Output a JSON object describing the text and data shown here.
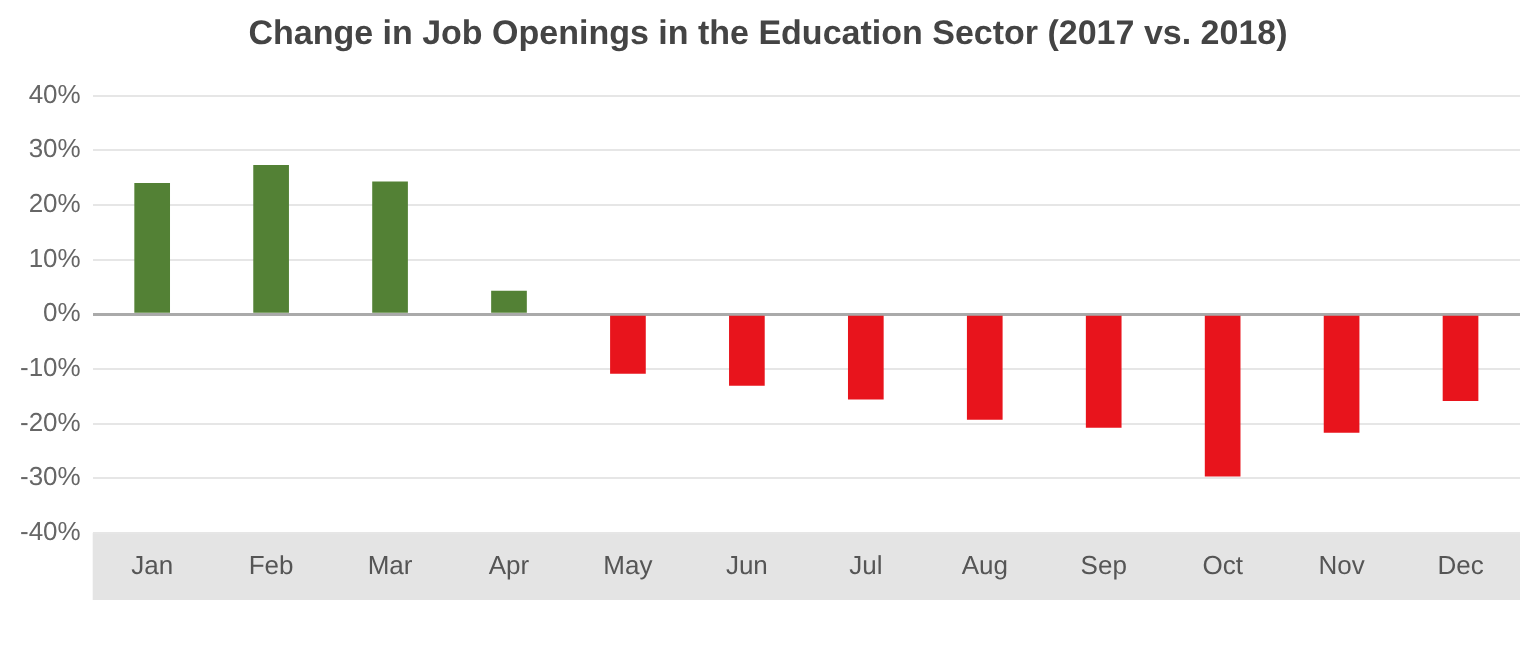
{
  "chart_data": {
    "type": "bar",
    "title": "Change in Job Openings in the Education Sector (2017 vs. 2018)",
    "categories": [
      "Jan",
      "Feb",
      "Mar",
      "Apr",
      "May",
      "Jun",
      "Jul",
      "Aug",
      "Sep",
      "Oct",
      "Nov",
      "Dec"
    ],
    "values": [
      24,
      27.3,
      24.3,
      4.3,
      -10.9,
      -13.1,
      -15.6,
      -19.3,
      -20.8,
      -29.7,
      -21.7,
      -15.9
    ],
    "colors": [
      "#538135",
      "#538135",
      "#538135",
      "#538135",
      "#e8141c",
      "#e8141c",
      "#e8141c",
      "#e8141c",
      "#e8141c",
      "#e8141c",
      "#e8141c",
      "#e8141c"
    ],
    "ylim": [
      -40,
      40
    ],
    "yticks": [
      {
        "value": -40,
        "label": "-40%"
      },
      {
        "value": -30,
        "label": "-30%"
      },
      {
        "value": -20,
        "label": "-20%"
      },
      {
        "value": -10,
        "label": "-10%"
      },
      {
        "value": 0,
        "label": "0%"
      },
      {
        "value": 10,
        "label": "10%"
      },
      {
        "value": 20,
        "label": "20%"
      },
      {
        "value": 30,
        "label": "30%"
      },
      {
        "value": 40,
        "label": "40%"
      }
    ],
    "grid": "y",
    "legend": false
  }
}
